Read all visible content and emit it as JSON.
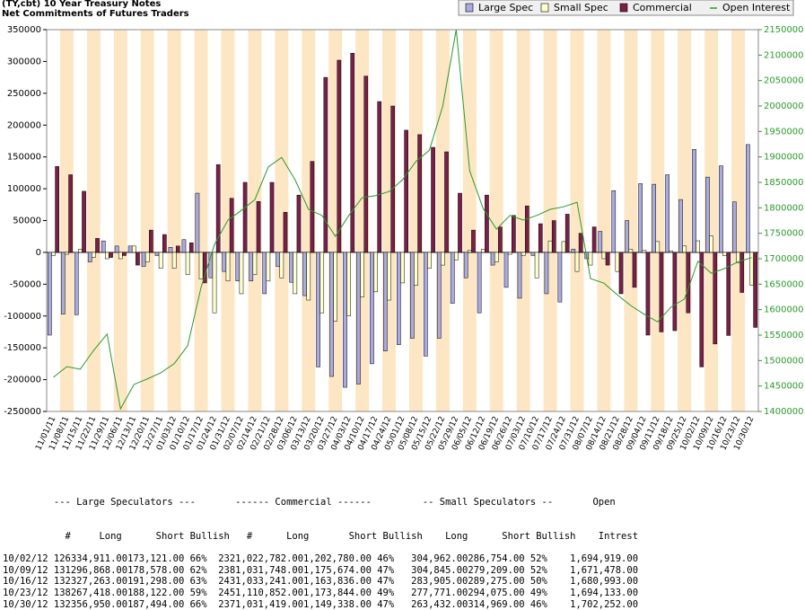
{
  "chart_data": {
    "type": "bar",
    "title": "(TY,cbt) 10 Year Treasury Notes",
    "subtitle": "Net Commitments of Futures Traders",
    "categories": [
      "11/01/11",
      "11/08/11",
      "11/15/11",
      "11/22/11",
      "11/29/11",
      "12/06/11",
      "12/13/11",
      "12/20/11",
      "12/27/11",
      "01/03/12",
      "01/10/12",
      "01/17/12",
      "01/24/12",
      "01/31/12",
      "02/07/12",
      "02/14/12",
      "02/21/12",
      "02/28/12",
      "03/06/12",
      "03/13/12",
      "03/20/12",
      "03/27/12",
      "04/03/12",
      "04/10/12",
      "04/17/12",
      "04/24/12",
      "05/01/12",
      "05/08/12",
      "05/15/12",
      "05/22/12",
      "05/29/12",
      "06/05/12",
      "06/12/12",
      "06/19/12",
      "06/26/12",
      "07/03/12",
      "07/10/12",
      "07/17/12",
      "07/24/12",
      "07/31/12",
      "08/07/12",
      "08/14/12",
      "08/21/12",
      "08/28/12",
      "09/04/12",
      "09/11/12",
      "09/18/12",
      "09/25/12",
      "10/02/12",
      "10/09/12",
      "10/16/12",
      "10/23/12",
      "10/30/12"
    ],
    "series": [
      {
        "name": "Large Spec",
        "color": "#aaaadd",
        "values": [
          -130000,
          -97000,
          -98000,
          -15000,
          18000,
          10000,
          10000,
          -22000,
          -5000,
          8000,
          20000,
          93000,
          -40000,
          -30000,
          -45000,
          -45000,
          -65000,
          -22000,
          -47000,
          -68000,
          -180000,
          -195000,
          -212000,
          -207000,
          -175000,
          -155000,
          -145000,
          -135000,
          -163000,
          -135000,
          -80000,
          -40000,
          -95000,
          -20000,
          -55000,
          -72000,
          -5000,
          -65000,
          -78000,
          5000,
          -10000,
          33000,
          97000,
          50000,
          108000,
          107000,
          122000,
          83000,
          161790,
          118290,
          135965,
          79296,
          169456
        ]
      },
      {
        "name": "Small Spec",
        "color": "#ffffcc",
        "values": [
          -5000,
          -3000,
          5000,
          -8000,
          -10000,
          -10000,
          10000,
          -15000,
          -25000,
          -25000,
          -35000,
          -42000,
          -95000,
          -45000,
          -65000,
          -35000,
          -45000,
          -40000,
          -65000,
          -75000,
          -95000,
          -108000,
          -100000,
          -70000,
          -62000,
          -75000,
          -48000,
          -52000,
          -25000,
          -20000,
          -12000,
          3000,
          5000,
          -15000,
          -3000,
          -5000,
          -40000,
          18000,
          17000,
          -30000,
          -20000,
          -10000,
          -30000,
          5000,
          3000,
          17000,
          2000,
          10000,
          18208,
          25636,
          -5370,
          -16304,
          -51537
        ]
      },
      {
        "name": "Commercial",
        "color": "#7a2048",
        "values": [
          135000,
          122000,
          96000,
          22000,
          -8000,
          -5000,
          -20000,
          35000,
          28000,
          10000,
          15000,
          -48000,
          138000,
          85000,
          110000,
          80000,
          110000,
          63000,
          90000,
          143000,
          275000,
          302000,
          313000,
          277000,
          237000,
          230000,
          192000,
          185000,
          165000,
          158000,
          93000,
          35000,
          90000,
          40000,
          58000,
          73000,
          45000,
          50000,
          60000,
          30000,
          40000,
          -20000,
          -65000,
          -55000,
          -130000,
          -125000,
          -123000,
          -95000,
          -179998,
          -143926,
          -130595,
          -62992,
          -117919
        ]
      },
      {
        "name": "Open Interest",
        "color": "#2a9a2a",
        "type": "line",
        "axis": "y2",
        "values": [
          1467000,
          1488000,
          1483000,
          1520000,
          1552000,
          1405000,
          1453000,
          1464000,
          1476000,
          1494000,
          1529000,
          1644000,
          1728000,
          1776000,
          1795000,
          1816000,
          1880000,
          1899000,
          1855000,
          1797000,
          1785000,
          1744000,
          1785000,
          1820000,
          1824000,
          1832000,
          1855000,
          1891000,
          1913000,
          2000000,
          2150000,
          1873000,
          1799000,
          1758000,
          1785000,
          1776000,
          1785000,
          1797000,
          1802000,
          1811000,
          1661000,
          1652000,
          1629000,
          1608000,
          1591000,
          1576000,
          1605000,
          1621000,
          1694919,
          1671478,
          1680993,
          1694133,
          1702252
        ]
      }
    ],
    "ylim": [
      -250000,
      350000
    ],
    "yticks": [
      -250000,
      -200000,
      -150000,
      -100000,
      -50000,
      0,
      50000,
      100000,
      150000,
      200000,
      250000,
      300000,
      350000
    ],
    "y2lim": [
      1400000,
      2150000
    ],
    "y2ticks": [
      1400000,
      1450000,
      1500000,
      1550000,
      1600000,
      1650000,
      1700000,
      1750000,
      1800000,
      1850000,
      1900000,
      1950000,
      2000000,
      2050000,
      2100000,
      2150000
    ],
    "y2color": "#2a9a2a",
    "legend": "top-right",
    "grid": false
  },
  "table": {
    "header": [
      "         --- Large Speculators ---       ------ Commercial ------         -- Small Speculators --       Open",
      "           #     Long      Short Bullish   #      Long       Short Bullish    Long      Short Bullish    Intrest"
    ],
    "rows": [
      "10/02/12 126334,911.00173,121.00 66%  2321,022,782.001,202,780.00 46%   304,962.00286,754.00 52%    1,694,919.00",
      "10/09/12 131296,868.00178,578.00 62%  2381,031,748.001,175,674.00 47%   304,845.00279,209.00 52%    1,671,478.00",
      "10/16/12 132327,263.00191,298.00 63%  2431,033,241.001,163,836.00 47%   283,905.00289,275.00 50%    1,680,993.00",
      "10/23/12 138267,418.00188,122.00 59%  2451,110,852.001,173,844.00 49%   277,771.00294,075.00 49%    1,694,133.00",
      "10/30/12 132356,950.00187,494.00 66%  2371,031,419.001,149,338.00 47%   263,432.00314,969.00 46%    1,702,252.00"
    ]
  }
}
